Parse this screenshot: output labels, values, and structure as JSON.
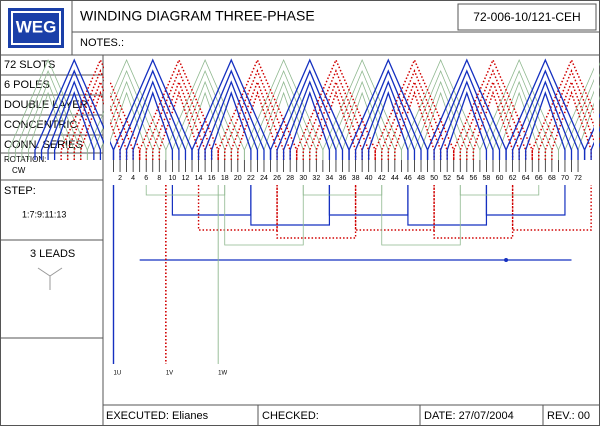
{
  "header": {
    "logo": "WEG",
    "title": "WINDING DIAGRAM THREE-PHASE",
    "code": "72-006-10/121-CEH",
    "notes": "NOTES.:"
  },
  "specs": [
    "72 SLOTS",
    "6 POLES",
    "DOUBLE LAYER",
    "CONCENTRIC",
    "CONN. SERIES"
  ],
  "rotation": {
    "label": "ROTATION:",
    "value": "CW"
  },
  "step": {
    "label": "STEP:",
    "value": "1:7:9:11:13"
  },
  "leads_label": "3 LEADS",
  "slot_labels": [
    2,
    4,
    6,
    8,
    10,
    12,
    14,
    16,
    18,
    20,
    22,
    24,
    26,
    28,
    30,
    32,
    34,
    36,
    38,
    40,
    42,
    44,
    46,
    48,
    50,
    52,
    54,
    56,
    58,
    60,
    62,
    64,
    66,
    68,
    70,
    72
  ],
  "leads": [
    "1U",
    "1V",
    "1W"
  ],
  "footer": {
    "executed": "EXECUTED: Elianes",
    "checked": "CHECKED:",
    "date": "DATE: 27/07/2004",
    "rev": "REV.: 00"
  }
}
